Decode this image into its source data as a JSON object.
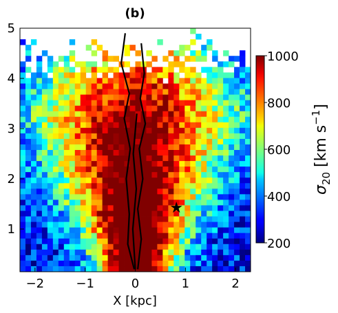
{
  "chart_data": {
    "type": "heatmap",
    "title": "(b)",
    "xlabel": "X [kpc]",
    "ylabel": "",
    "xlim": [
      -2.3,
      2.3
    ],
    "ylim": [
      0.15,
      5.0
    ],
    "x_ticks": [
      -2,
      -1,
      0,
      1,
      2
    ],
    "x_tick_labels": [
      "−2",
      "−1",
      "0",
      "1",
      "2"
    ],
    "y_ticks": [
      1,
      2,
      3,
      4,
      5
    ],
    "y_tick_labels": [
      "1",
      "2",
      "3",
      "4",
      "5"
    ],
    "colorbar": {
      "label_symbol": "σ",
      "label_subscript": "20",
      "label_units": "[km s",
      "label_units_exponent": "−1",
      "label_units_close": "]",
      "range": [
        200,
        1000
      ],
      "ticks": [
        200,
        400,
        600,
        800,
        1000
      ],
      "tick_labels": [
        "200",
        "400",
        "600",
        "800",
        "1000"
      ],
      "colormap": "jet"
    },
    "grid_cells": {
      "nx": 42,
      "ny": 44
    },
    "grid_on": false,
    "contour_color": "#000000",
    "star_marker": {
      "x": 0.82,
      "y": 1.42,
      "symbol": "★"
    },
    "no_data_color": "#ffffff"
  }
}
